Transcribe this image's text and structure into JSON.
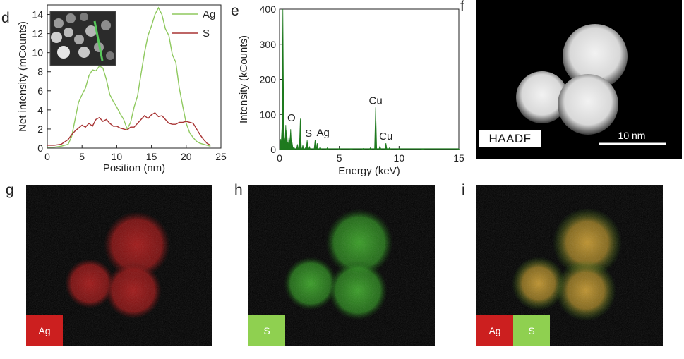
{
  "panels": {
    "d": "d",
    "e": "e",
    "f": "f",
    "g": "g",
    "h": "h",
    "i": "i"
  },
  "chart_data": [
    {
      "type": "line",
      "panel": "d",
      "xlabel": "Position (nm)",
      "ylabel": "Net intensity (mCounts)",
      "xlim": [
        0,
        25
      ],
      "ylim": [
        0,
        15
      ],
      "xticks": [
        0,
        5,
        10,
        15,
        20,
        25
      ],
      "yticks": [
        0,
        2,
        4,
        6,
        8,
        10,
        12,
        14
      ],
      "legend_position": "top-right",
      "series": [
        {
          "name": "Ag",
          "color": "#8fc95f",
          "x": [
            0,
            1,
            2,
            3,
            3.5,
            4,
            4.5,
            5,
            5.5,
            6,
            6.5,
            7,
            7.5,
            8,
            8.5,
            9,
            9.5,
            10,
            10.5,
            11,
            11.5,
            12,
            12.5,
            13,
            13.5,
            14,
            14.5,
            15,
            15.5,
            16,
            16.5,
            17,
            17.5,
            18,
            18.5,
            19,
            19.5,
            20,
            20.5,
            21,
            21.5,
            22,
            23,
            23.5
          ],
          "y": [
            0.1,
            0.1,
            0.2,
            0.4,
            1.2,
            3.0,
            4.8,
            5.6,
            6.3,
            7.6,
            8.2,
            8.1,
            8.6,
            8.4,
            7.2,
            5.6,
            4.9,
            4.3,
            3.6,
            3.0,
            2.0,
            2.7,
            4.3,
            5.5,
            7.8,
            10.0,
            11.8,
            12.8,
            14.0,
            14.7,
            14.0,
            12.5,
            11.8,
            9.8,
            9.0,
            6.3,
            4.4,
            2.6,
            1.6,
            1.1,
            0.7,
            0.5,
            0.3,
            0.2
          ]
        },
        {
          "name": "S",
          "color": "#a83434",
          "x": [
            0,
            1,
            2,
            3,
            3.5,
            4,
            4.5,
            5,
            5.5,
            6,
            6.5,
            7,
            7.5,
            8,
            8.5,
            9,
            9.5,
            10,
            10.5,
            11,
            11.5,
            12,
            12.5,
            13,
            13.5,
            14,
            14.5,
            15,
            15.5,
            16,
            16.5,
            17,
            17.5,
            18,
            18.5,
            19,
            19.5,
            20,
            20.5,
            21,
            21.5,
            22,
            22.5,
            23,
            23.5
          ],
          "y": [
            0.3,
            0.3,
            0.4,
            0.9,
            1.4,
            1.8,
            2.1,
            2.4,
            2.2,
            2.6,
            2.3,
            3.0,
            3.2,
            2.8,
            3.0,
            2.6,
            2.3,
            2.3,
            2.1,
            2.0,
            1.9,
            2.2,
            2.2,
            2.6,
            3.0,
            3.4,
            3.1,
            3.5,
            3.7,
            3.3,
            3.4,
            3.0,
            2.6,
            2.5,
            2.5,
            2.7,
            2.7,
            2.8,
            2.7,
            2.6,
            2.0,
            1.4,
            0.9,
            0.5,
            0.3
          ]
        }
      ]
    },
    {
      "type": "area",
      "panel": "e",
      "xlabel": "Energy (keV)",
      "ylabel": "Intensity (kCounts)",
      "xlim": [
        0,
        15
      ],
      "ylim": [
        0,
        400
      ],
      "xticks": [
        0,
        5,
        10,
        15
      ],
      "yticks": [
        0,
        100,
        200,
        300,
        400
      ],
      "series": [
        {
          "color": "#1f7a1f",
          "x": [
            0.1,
            0.2,
            0.28,
            0.4,
            0.52,
            0.6,
            0.7,
            0.8,
            0.93,
            1.05,
            1.2,
            1.5,
            1.74,
            1.95,
            2.2,
            2.31,
            2.5,
            2.98,
            3.15,
            3.4,
            4.0,
            5.0,
            6.0,
            7.0,
            7.6,
            8.04,
            8.4,
            8.9,
            9.2,
            10,
            12,
            15
          ],
          "y": [
            30,
            60,
            400,
            35,
            70,
            55,
            20,
            40,
            58,
            20,
            8,
            15,
            88,
            12,
            8,
            26,
            8,
            28,
            18,
            8,
            5,
            3,
            2,
            3,
            5,
            120,
            10,
            18,
            5,
            3,
            2,
            1
          ]
        }
      ],
      "annotations": [
        {
          "text": "O",
          "x": 0.52,
          "y": 70
        },
        {
          "text": "S",
          "x": 2.31,
          "y": 26
        },
        {
          "text": "Ag",
          "x": 2.98,
          "y": 28
        },
        {
          "text": "Cu",
          "x": 8.04,
          "y": 120
        },
        {
          "text": "Cu",
          "x": 8.9,
          "y": 18
        }
      ]
    }
  ],
  "inset": {
    "description_icon": "line-scan-inset"
  },
  "haadf": {
    "label": "HAADF",
    "scale_bar": "10 nm"
  },
  "maps": {
    "g_label": "Ag",
    "h_label": "S",
    "i_label_ag": "Ag",
    "i_label_s": "S",
    "ag_color": "#cc1f1f",
    "s_color": "#8fd050"
  }
}
